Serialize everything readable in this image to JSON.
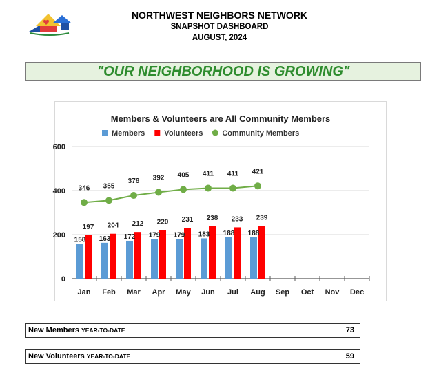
{
  "header": {
    "org_name": "NORTHWEST NEIGHBORS NETWORK",
    "subtitle": "SNAPSHOT DASHBOARD",
    "period": "AUGUST,  2024"
  },
  "banner": {
    "text": "\"OUR NEIGHBORHOOD IS GROWING\""
  },
  "chart_data": {
    "type": "bar",
    "title": "Members & Volunteers are All Community Members",
    "categories": [
      "Jan",
      "Feb",
      "Mar",
      "Apr",
      "May",
      "Jun",
      "Jul",
      "Aug",
      "Sep",
      "Oct",
      "Nov",
      "Dec"
    ],
    "series": [
      {
        "name": "Members",
        "type": "bar",
        "color": "#5b9bd5",
        "values": [
          158,
          163,
          172,
          179,
          179,
          183,
          188,
          188,
          null,
          null,
          null,
          null
        ]
      },
      {
        "name": "Volunteers",
        "type": "bar",
        "color": "#ff0000",
        "values": [
          197,
          204,
          212,
          220,
          231,
          238,
          233,
          239,
          null,
          null,
          null,
          null
        ]
      },
      {
        "name": "Community Members",
        "type": "line",
        "color": "#70ad47",
        "values": [
          346,
          355,
          378,
          392,
          405,
          411,
          411,
          421,
          null,
          null,
          null,
          null
        ]
      }
    ],
    "yticks": [
      "0",
      "200",
      "400",
      "600"
    ],
    "ylim": [
      0,
      600
    ],
    "legend": "top",
    "grid": true
  },
  "stats": {
    "new_members": {
      "label": "New Members",
      "sub": "YEAR-TO-DATE",
      "value": "73"
    },
    "new_volunteers": {
      "label": "New Volunteers",
      "sub": "YEAR-TO-DATE",
      "value": "59"
    }
  }
}
